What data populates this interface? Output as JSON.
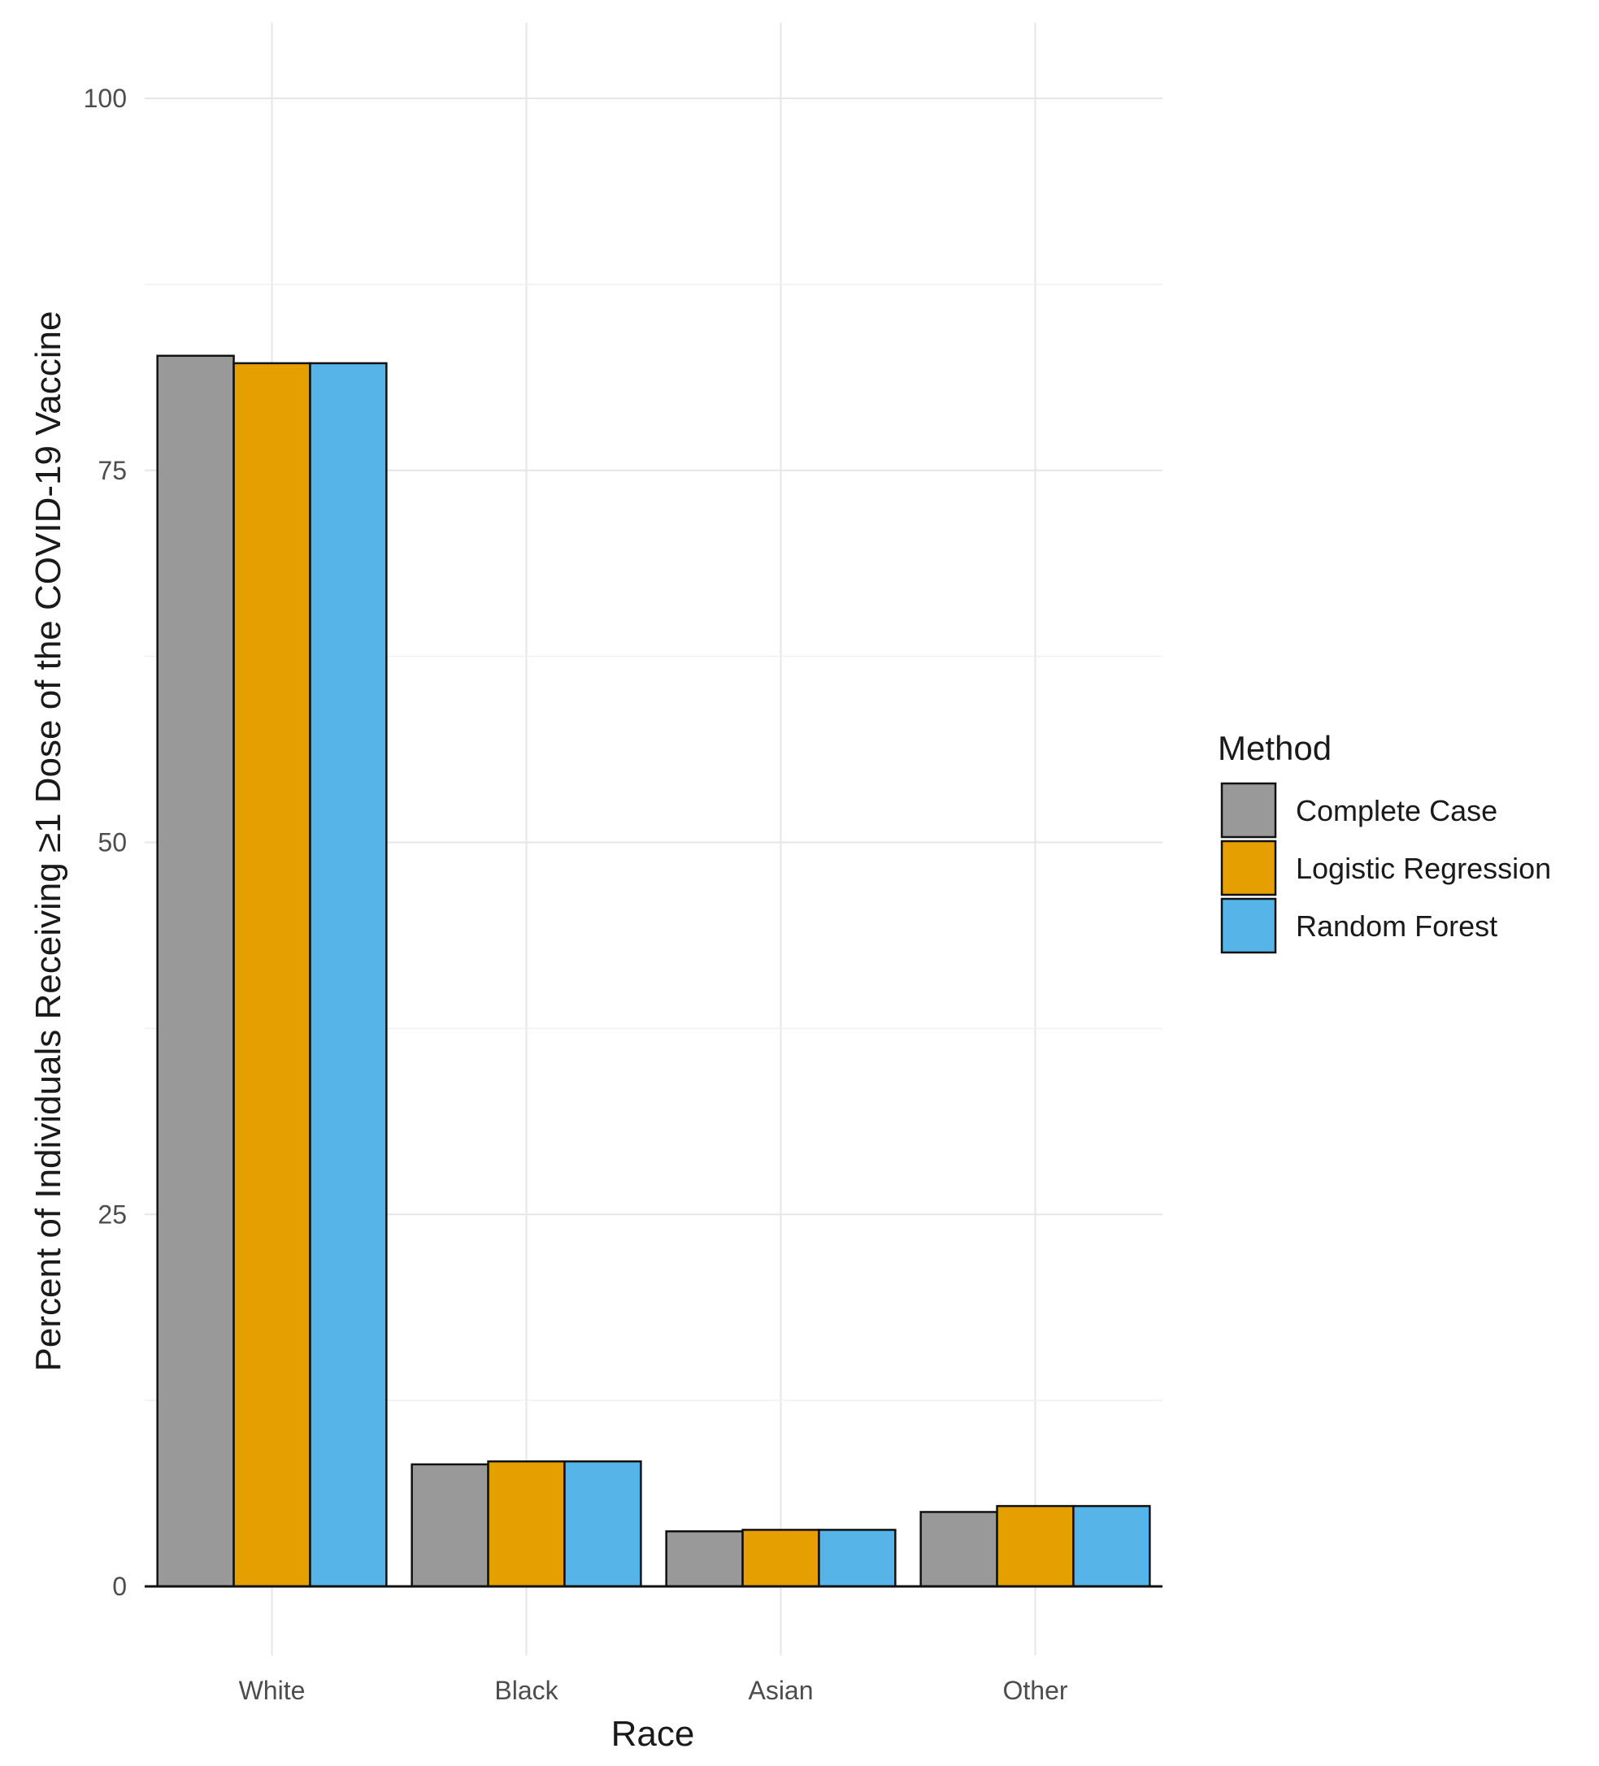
{
  "chart_data": {
    "type": "bar",
    "categories": [
      "White",
      "Black",
      "Asian",
      "Other"
    ],
    "series": [
      {
        "name": "Complete Case",
        "color": "#999999",
        "values": [
          82.7,
          8.2,
          3.7,
          5.0
        ]
      },
      {
        "name": "Logistic Regression",
        "color": "#E69F00",
        "values": [
          82.2,
          8.4,
          3.8,
          5.4
        ]
      },
      {
        "name": "Random Forest",
        "color": "#56B4E9",
        "values": [
          82.2,
          8.4,
          3.8,
          5.4
        ]
      }
    ],
    "xlabel": "Race",
    "ylabel": "Percent of Individuals Receiving ≥1 Dose of the COVID-19 Vaccine",
    "ylim": [
      0,
      105
    ],
    "yticks": [
      0,
      25,
      50,
      75,
      100
    ],
    "legend_title": "Method",
    "legend_position": "right",
    "grid": true
  }
}
